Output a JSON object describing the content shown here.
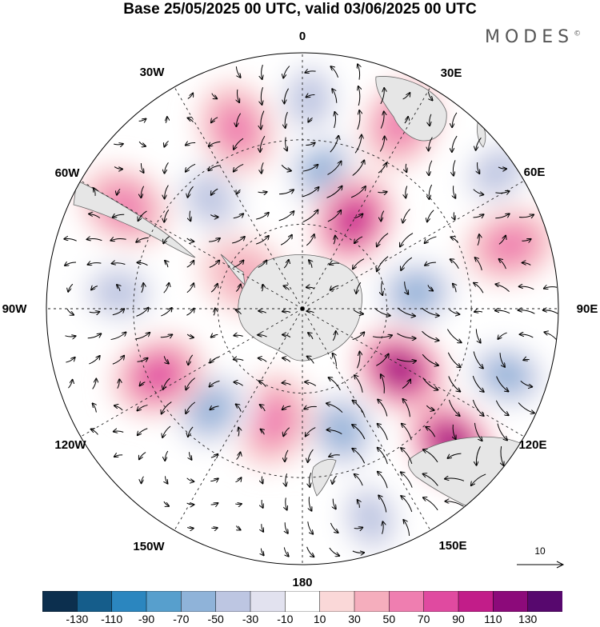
{
  "title": "Base 25/05/2025 00 UTC, valid 03/06/2025 00 UTC",
  "brand": "MODES",
  "brand_mark": "©",
  "longitude_labels": [
    "0",
    "30E",
    "60E",
    "90E",
    "120E",
    "150E",
    "180",
    "150W",
    "120W",
    "90W",
    "60W",
    "30W"
  ],
  "reference_vector": "10",
  "colorbar": {
    "colors": [
      "#0c2f4e",
      "#155d8b",
      "#2b86bf",
      "#579fcd",
      "#8fb3d9",
      "#bdc6e2",
      "#e2e2ef",
      "#ffffff",
      "#fad8d8",
      "#f5aebd",
      "#ef7eb0",
      "#e04aa0",
      "#c21d89",
      "#8c0a7a",
      "#57086e"
    ],
    "tick_labels": [
      "-130",
      "-110",
      "-90",
      "-70",
      "-50",
      "-30",
      "-10",
      "10",
      "30",
      "50",
      "70",
      "90",
      "110",
      "130"
    ]
  },
  "anomalies": [
    {
      "r": 0.55,
      "theta": 8,
      "value": -70
    },
    {
      "r": 0.82,
      "theta": 2,
      "value": -50
    },
    {
      "r": 0.4,
      "theta": 30,
      "value": 90
    },
    {
      "r": 0.82,
      "theta": 28,
      "value": 50
    },
    {
      "r": 0.93,
      "theta": 55,
      "value": -50
    },
    {
      "r": 0.85,
      "theta": 73,
      "value": 50
    },
    {
      "r": 0.45,
      "theta": 82,
      "value": -70
    },
    {
      "r": 0.84,
      "theta": 108,
      "value": -70
    },
    {
      "r": 0.45,
      "theta": 122,
      "value": 110
    },
    {
      "r": 0.78,
      "theta": 132,
      "value": 110
    },
    {
      "r": 0.5,
      "theta": 162,
      "value": -70
    },
    {
      "r": 0.86,
      "theta": 162,
      "value": -50
    },
    {
      "r": 0.45,
      "theta": 195,
      "value": 50
    },
    {
      "r": 0.53,
      "theta": 222,
      "value": -70
    },
    {
      "r": 0.62,
      "theta": 245,
      "value": 70
    },
    {
      "r": 0.72,
      "theta": 275,
      "value": -50
    },
    {
      "r": 0.8,
      "theta": 300,
      "value": 50
    },
    {
      "r": 0.56,
      "theta": 320,
      "value": -50
    },
    {
      "r": 0.75,
      "theta": 340,
      "value": 50
    },
    {
      "r": 0.26,
      "theta": 300,
      "value": 30
    }
  ]
}
